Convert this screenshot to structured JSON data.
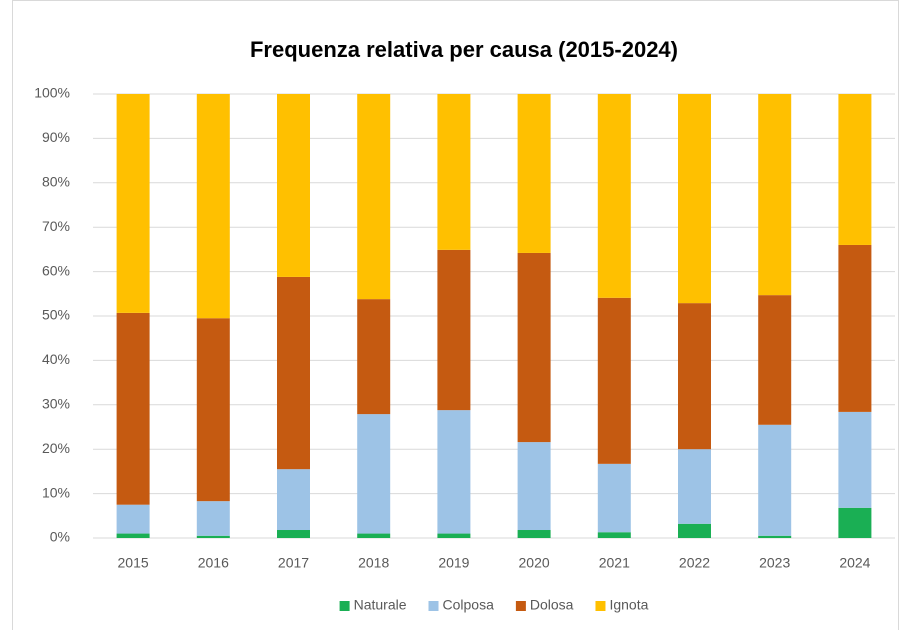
{
  "chart_data": {
    "type": "stacked_bar",
    "title": "Frequenza relativa per causa (2015-2024)",
    "categories": [
      "2015",
      "2016",
      "2017",
      "2018",
      "2019",
      "2020",
      "2021",
      "2022",
      "2023",
      "2024"
    ],
    "series": [
      {
        "name": "Naturale",
        "color": "#1aaf54",
        "values": [
          1.0,
          0.5,
          1.8,
          1.0,
          1.0,
          1.8,
          1.3,
          3.2,
          0.5,
          6.8
        ]
      },
      {
        "name": "Colposa",
        "color": "#9dc3e6",
        "values": [
          6.5,
          7.8,
          13.7,
          26.9,
          27.8,
          19.8,
          15.4,
          16.8,
          25.0,
          21.6
        ]
      },
      {
        "name": "Dolosa",
        "color": "#c55a11",
        "values": [
          43.2,
          41.2,
          43.3,
          25.9,
          36.1,
          42.6,
          37.4,
          32.9,
          29.2,
          37.6
        ]
      },
      {
        "name": "Ignota",
        "color": "#ffc000",
        "values": [
          49.3,
          50.5,
          41.2,
          46.2,
          35.1,
          35.8,
          45.9,
          47.1,
          45.3,
          34.0
        ]
      }
    ],
    "ylim": [
      0,
      100
    ],
    "yticks": [
      {
        "value": 0,
        "label": "0%"
      },
      {
        "value": 10,
        "label": "10%"
      },
      {
        "value": 20,
        "label": "20%"
      },
      {
        "value": 30,
        "label": "30%"
      },
      {
        "value": 40,
        "label": "40%"
      },
      {
        "value": 50,
        "label": "50%"
      },
      {
        "value": 60,
        "label": "60%"
      },
      {
        "value": 70,
        "label": "70%"
      },
      {
        "value": 80,
        "label": "80%"
      },
      {
        "value": 90,
        "label": "90%"
      },
      {
        "value": 100,
        "label": "100%"
      }
    ],
    "grid": true,
    "legend": "bottom"
  }
}
